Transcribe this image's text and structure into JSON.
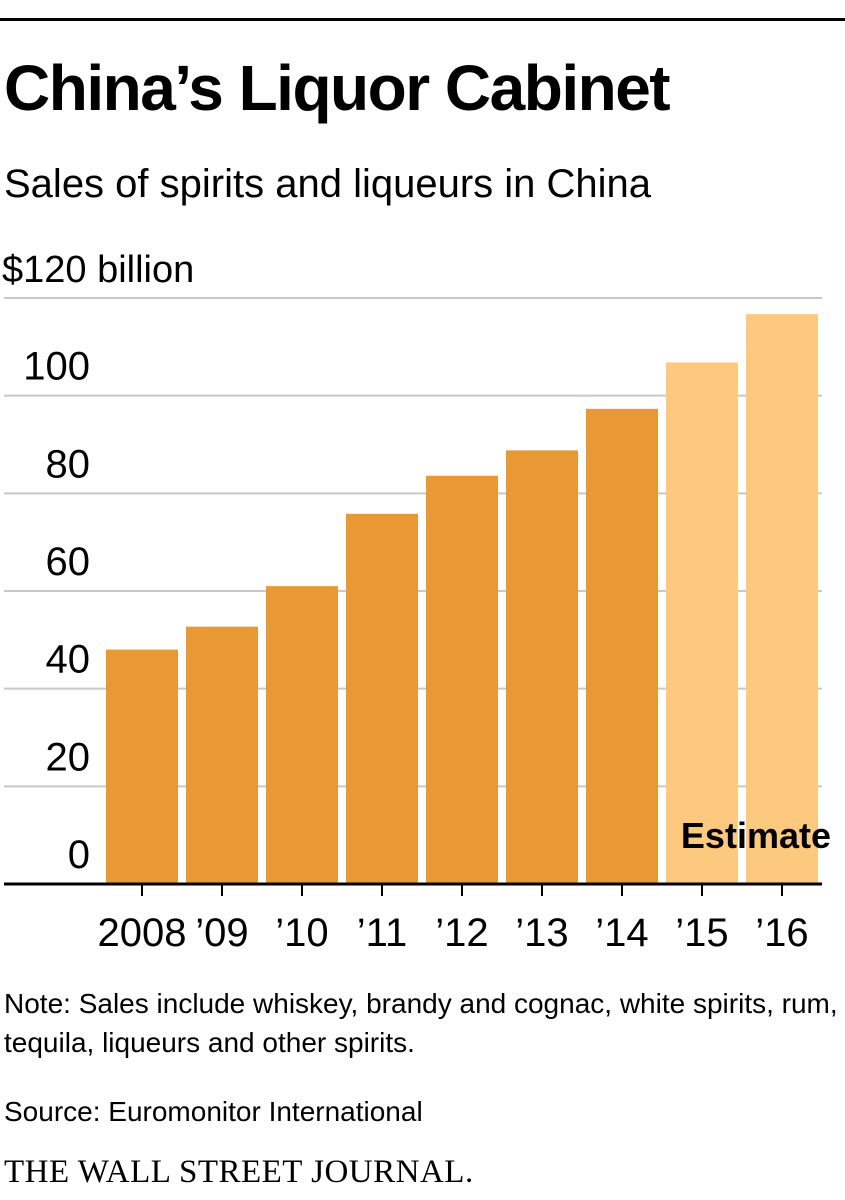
{
  "header": {
    "title": "China’s Liquor Cabinet",
    "subtitle": "Sales of spirits and liqueurs in China"
  },
  "chart_data": {
    "type": "bar",
    "title": "China’s Liquor Cabinet",
    "subtitle": "Sales of spirits and liqueurs in China",
    "unit_label": "$120 billion",
    "categories": [
      "2008",
      "’09",
      "’10",
      "’11",
      "’12",
      "’13",
      "’14",
      "’15",
      "’16"
    ],
    "values": [
      48,
      52.7,
      61,
      75.8,
      83.6,
      88.8,
      97.3,
      106.8,
      116.7
    ],
    "estimate": [
      false,
      false,
      false,
      false,
      false,
      false,
      false,
      true,
      true
    ],
    "ylim": [
      0,
      120
    ],
    "yticks": [
      0,
      20,
      40,
      60,
      80,
      100,
      120
    ],
    "ytick_labels": [
      "0",
      "20",
      "40",
      "60",
      "80",
      "100",
      "$120 billion"
    ],
    "estimate_label": "Estimate",
    "colors": {
      "actual": "#e89835",
      "estimate": "#fcc97e",
      "grid": "#c8c8c8",
      "axis": "#000000"
    }
  },
  "footer": {
    "note": "Note: Sales include whiskey, brandy and cognac, white spirits, rum, tequila, liqueurs and other spirits.",
    "source": "Source: Euromonitor International",
    "brand": "THE WALL STREET JOURNAL."
  }
}
